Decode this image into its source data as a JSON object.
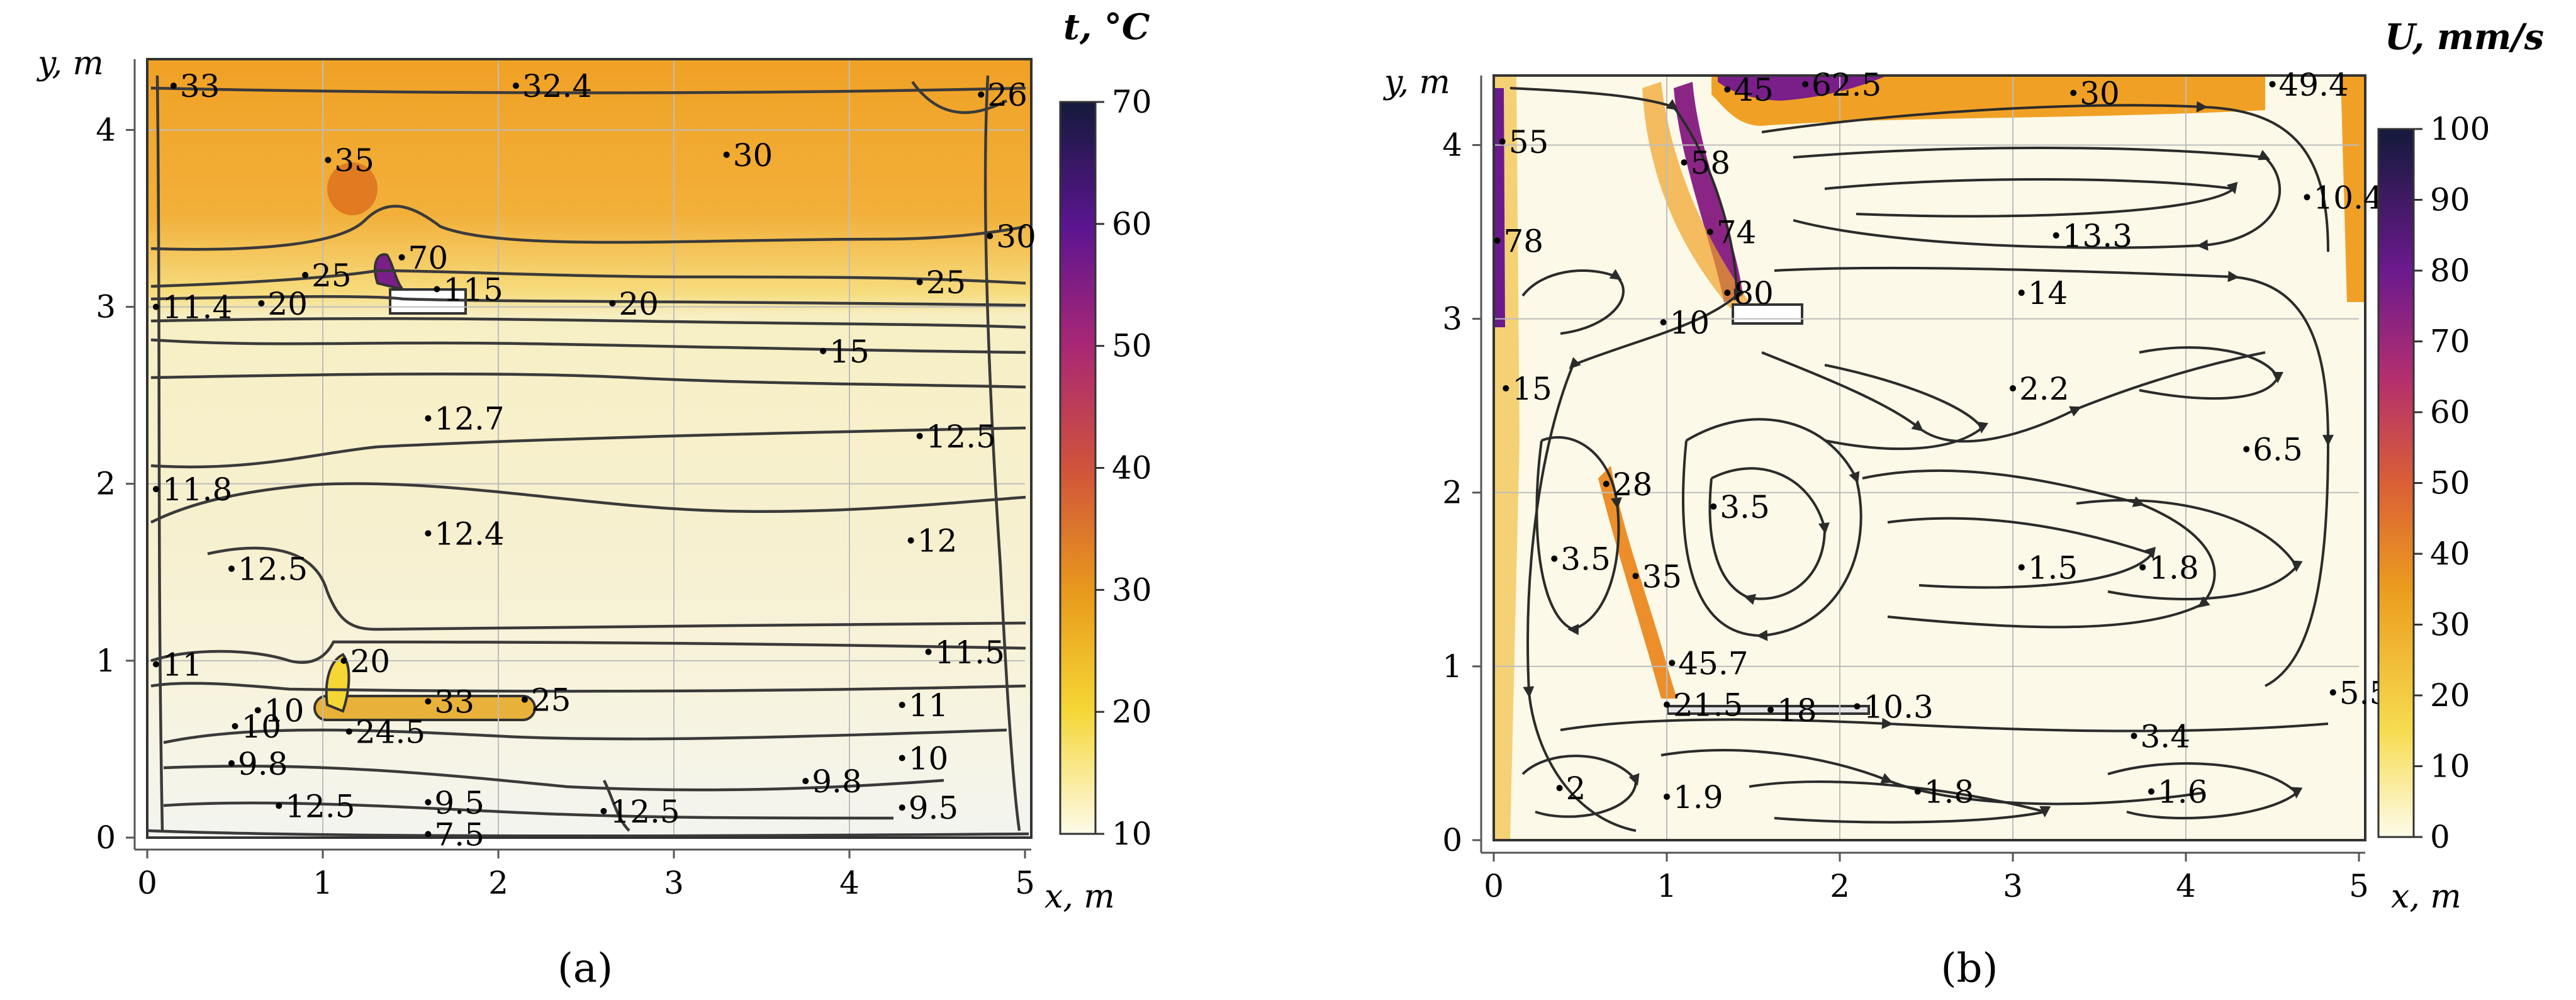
{
  "chart_data": [
    {
      "type": "heatmap",
      "panel": "(a)",
      "xlabel": "x, m",
      "ylabel": "y, m",
      "xlim": [
        0,
        5
      ],
      "ylim": [
        0,
        4.4
      ],
      "x_ticks": [
        "0",
        "1",
        "2",
        "3",
        "4",
        "5"
      ],
      "y_ticks": [
        "0",
        "1",
        "2",
        "3",
        "4"
      ],
      "colorbar": {
        "label": "t, °C",
        "range": [
          10,
          70
        ],
        "ticks": [
          "10",
          "20",
          "30",
          "40",
          "50",
          "60",
          "70"
        ]
      },
      "annotations": [
        {
          "text": "33",
          "x": 0.15,
          "y": 4.25
        },
        {
          "text": "32.4",
          "x": 2.1,
          "y": 4.25
        },
        {
          "text": "26",
          "x": 4.75,
          "y": 4.2
        },
        {
          "text": "35",
          "x": 1.03,
          "y": 3.83
        },
        {
          "text": "30",
          "x": 3.3,
          "y": 3.86
        },
        {
          "text": "30",
          "x": 4.8,
          "y": 3.4
        },
        {
          "text": "70",
          "x": 1.45,
          "y": 3.28
        },
        {
          "text": "25",
          "x": 0.9,
          "y": 3.18
        },
        {
          "text": "115",
          "x": 1.65,
          "y": 3.1
        },
        {
          "text": "25",
          "x": 4.4,
          "y": 3.14
        },
        {
          "text": "20",
          "x": 0.65,
          "y": 3.02
        },
        {
          "text": "20",
          "x": 2.65,
          "y": 3.02
        },
        {
          "text": "11.4",
          "x": 0.05,
          "y": 3.0
        },
        {
          "text": "15",
          "x": 3.85,
          "y": 2.75
        },
        {
          "text": "12.7",
          "x": 1.6,
          "y": 2.37
        },
        {
          "text": "12.5",
          "x": 4.4,
          "y": 2.27
        },
        {
          "text": "11.8",
          "x": 0.05,
          "y": 1.97
        },
        {
          "text": "12.4",
          "x": 1.6,
          "y": 1.72
        },
        {
          "text": "12",
          "x": 4.35,
          "y": 1.68
        },
        {
          "text": "12.5",
          "x": 0.48,
          "y": 1.52
        },
        {
          "text": "20",
          "x": 1.12,
          "y": 1.0
        },
        {
          "text": "11.5",
          "x": 4.45,
          "y": 1.05
        },
        {
          "text": "11",
          "x": 0.05,
          "y": 0.98
        },
        {
          "text": "33",
          "x": 1.6,
          "y": 0.77
        },
        {
          "text": "25",
          "x": 2.15,
          "y": 0.78
        },
        {
          "text": "10",
          "x": 0.63,
          "y": 0.72
        },
        {
          "text": "11",
          "x": 4.3,
          "y": 0.75
        },
        {
          "text": "10",
          "x": 0.5,
          "y": 0.63
        },
        {
          "text": "24.5",
          "x": 1.15,
          "y": 0.6
        },
        {
          "text": "9.8",
          "x": 3.75,
          "y": 0.32
        },
        {
          "text": "9.5",
          "x": 4.3,
          "y": 0.17
        },
        {
          "text": "10",
          "x": 4.3,
          "y": 0.45
        },
        {
          "text": "9.8",
          "x": 0.48,
          "y": 0.42
        },
        {
          "text": "9.5",
          "x": 1.6,
          "y": 0.2
        },
        {
          "text": "12.5",
          "x": 0.75,
          "y": 0.18
        },
        {
          "text": "12.5",
          "x": 2.6,
          "y": 0.15
        },
        {
          "text": "7.5",
          "x": 1.6,
          "y": 0.02
        }
      ]
    },
    {
      "type": "heatmap",
      "panel": "(b)",
      "xlabel": "x, m",
      "ylabel": "y, m",
      "xlim": [
        0,
        5
      ],
      "ylim": [
        0,
        4.4
      ],
      "x_ticks": [
        "0",
        "1",
        "2",
        "3",
        "4",
        "5"
      ],
      "y_ticks": [
        "0",
        "1",
        "2",
        "3",
        "4"
      ],
      "colorbar": {
        "label": "U, mm/s",
        "range": [
          0,
          100
        ],
        "ticks": [
          "0",
          "10",
          "20",
          "30",
          "40",
          "50",
          "60",
          "70",
          "80",
          "90",
          "100"
        ]
      },
      "annotations": [
        {
          "text": "55",
          "x": 0.05,
          "y": 4.02
        },
        {
          "text": "45",
          "x": 1.35,
          "y": 4.32
        },
        {
          "text": "62.5",
          "x": 1.8,
          "y": 4.35
        },
        {
          "text": "30",
          "x": 3.35,
          "y": 4.3
        },
        {
          "text": "49.4",
          "x": 4.5,
          "y": 4.35
        },
        {
          "text": "58",
          "x": 1.1,
          "y": 3.9
        },
        {
          "text": "78",
          "x": 0.02,
          "y": 3.45
        },
        {
          "text": "74",
          "x": 1.25,
          "y": 3.5
        },
        {
          "text": "13.3",
          "x": 3.25,
          "y": 3.48
        },
        {
          "text": "10.4",
          "x": 4.7,
          "y": 3.7
        },
        {
          "text": "80",
          "x": 1.35,
          "y": 3.15
        },
        {
          "text": "14",
          "x": 3.05,
          "y": 3.15
        },
        {
          "text": "10",
          "x": 0.98,
          "y": 2.98
        },
        {
          "text": "15",
          "x": 0.07,
          "y": 2.6
        },
        {
          "text": "2.2",
          "x": 3.0,
          "y": 2.6
        },
        {
          "text": "6.5",
          "x": 4.35,
          "y": 2.25
        },
        {
          "text": "28",
          "x": 0.65,
          "y": 2.05
        },
        {
          "text": "3.5",
          "x": 1.27,
          "y": 1.92
        },
        {
          "text": "3.5",
          "x": 0.35,
          "y": 1.62
        },
        {
          "text": "35",
          "x": 0.82,
          "y": 1.52
        },
        {
          "text": "1.5",
          "x": 3.05,
          "y": 1.57
        },
        {
          "text": "1.8",
          "x": 3.75,
          "y": 1.57
        },
        {
          "text": "45.7",
          "x": 1.03,
          "y": 1.02
        },
        {
          "text": "5.5",
          "x": 4.85,
          "y": 0.85
        },
        {
          "text": "21.5",
          "x": 1.0,
          "y": 0.78
        },
        {
          "text": "18",
          "x": 1.6,
          "y": 0.75
        },
        {
          "text": "10.3",
          "x": 2.1,
          "y": 0.77
        },
        {
          "text": "3.4",
          "x": 3.7,
          "y": 0.6
        },
        {
          "text": "2",
          "x": 0.38,
          "y": 0.3
        },
        {
          "text": "1.9",
          "x": 1.0,
          "y": 0.25
        },
        {
          "text": "1.8",
          "x": 2.45,
          "y": 0.28
        },
        {
          "text": "1.6",
          "x": 3.8,
          "y": 0.28
        }
      ]
    }
  ]
}
